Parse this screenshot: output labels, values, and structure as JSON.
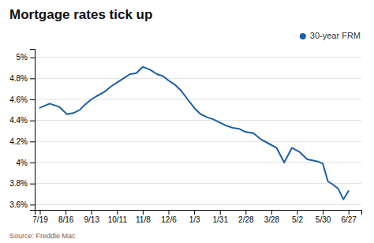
{
  "chart_data": {
    "type": "line",
    "title": "Mortgage rates tick up",
    "source": "Source: Freddie Mac",
    "x": [
      0,
      0.38,
      0.75,
      1.05,
      1.3,
      1.55,
      1.75,
      2.0,
      2.2,
      2.5,
      2.75,
      3.0,
      3.25,
      3.5,
      3.75,
      4.0,
      4.3,
      4.55,
      4.8,
      5.0,
      5.25,
      5.5,
      5.75,
      6.0,
      6.25,
      6.5,
      6.75,
      7.0,
      7.25,
      7.5,
      7.75,
      8.0,
      8.3,
      8.6,
      8.9,
      9.2,
      9.5,
      9.8,
      10.1,
      10.4,
      10.6,
      10.8,
      11.0,
      11.2,
      11.4,
      11.6,
      11.8,
      12.0
    ],
    "series": [
      {
        "name": "30-year FRM",
        "color": "#1B5EA8",
        "values": [
          4.52,
          4.56,
          4.53,
          4.46,
          4.47,
          4.5,
          4.55,
          4.6,
          4.63,
          4.67,
          4.72,
          4.76,
          4.8,
          4.84,
          4.85,
          4.91,
          4.88,
          4.84,
          4.82,
          4.78,
          4.74,
          4.68,
          4.6,
          4.52,
          4.46,
          4.43,
          4.41,
          4.38,
          4.35,
          4.33,
          4.32,
          4.29,
          4.28,
          4.22,
          4.18,
          4.14,
          4.0,
          4.14,
          4.1,
          4.03,
          4.02,
          4.01,
          3.99,
          3.82,
          3.79,
          3.75,
          3.65,
          3.73
        ]
      }
    ],
    "xlim": [
      -0.2,
      12.5
    ],
    "xticks": [
      {
        "value": 0,
        "label": "7/19"
      },
      {
        "value": 1,
        "label": "8/16"
      },
      {
        "value": 2,
        "label": "9/13"
      },
      {
        "value": 3,
        "label": "10/11"
      },
      {
        "value": 4,
        "label": "11/8"
      },
      {
        "value": 5,
        "label": "12/6"
      },
      {
        "value": 6,
        "label": "1/3"
      },
      {
        "value": 7,
        "label": "1/31"
      },
      {
        "value": 8,
        "label": "2/28"
      },
      {
        "value": 9,
        "label": "3/28"
      },
      {
        "value": 10,
        "label": "5/2"
      },
      {
        "value": 11,
        "label": "5/30"
      },
      {
        "value": 12,
        "label": "6/27"
      }
    ],
    "ylim": [
      3.55,
      5.08
    ],
    "yticks": [
      {
        "value": 3.6,
        "label": "3.6%"
      },
      {
        "value": 3.8,
        "label": "3.8%"
      },
      {
        "value": 4.0,
        "label": "4%"
      },
      {
        "value": 4.2,
        "label": "4.2%"
      },
      {
        "value": 4.4,
        "label": "4.4%"
      },
      {
        "value": 4.6,
        "label": "4.6%"
      },
      {
        "value": 4.8,
        "label": "4.8%"
      },
      {
        "value": 5.0,
        "label": "5%"
      }
    ],
    "grid": true,
    "legend": "upper right"
  }
}
